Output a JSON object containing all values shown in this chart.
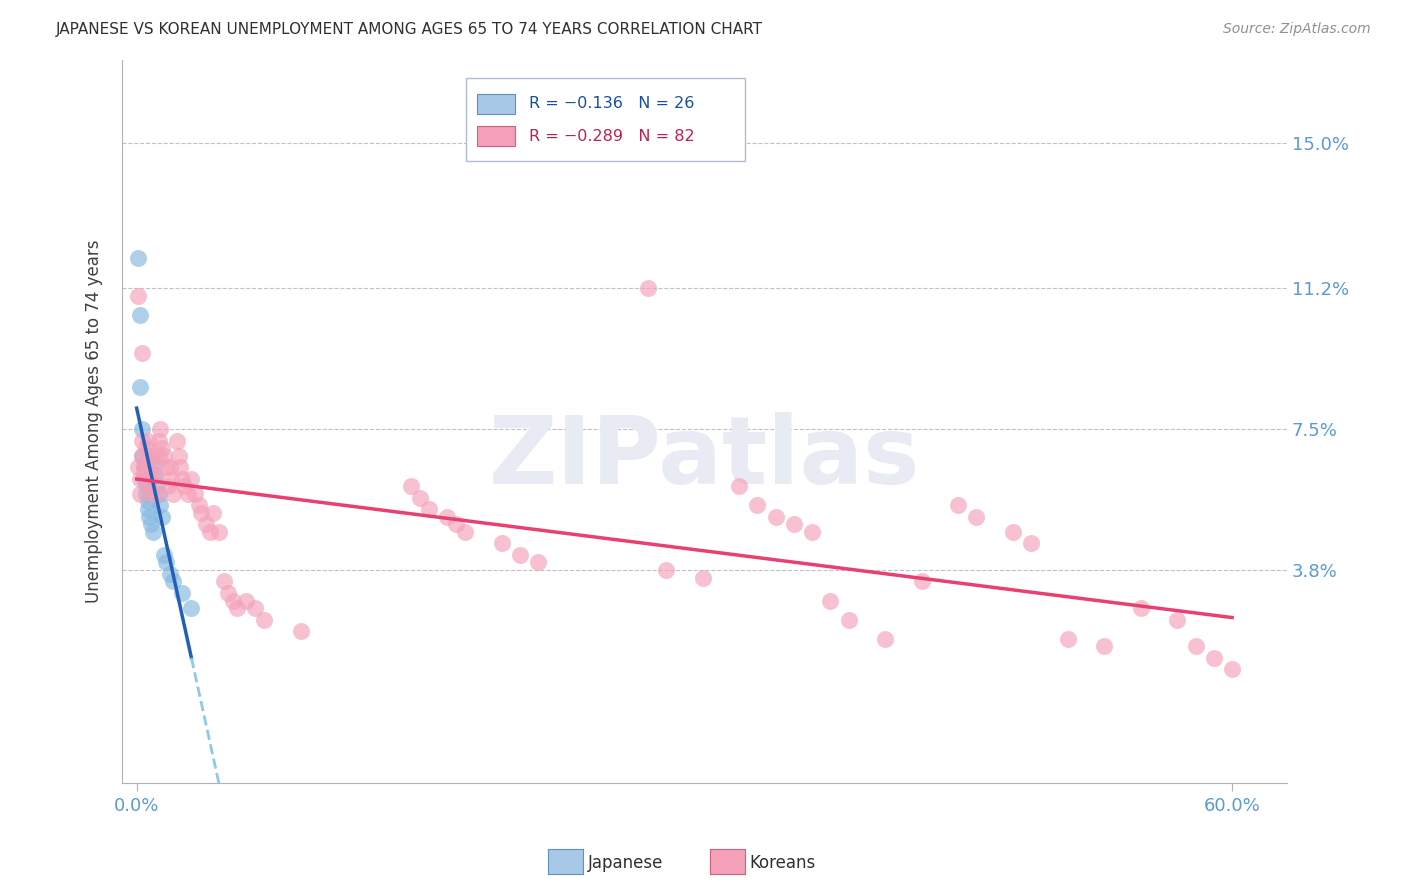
{
  "title": "JAPANESE VS KOREAN UNEMPLOYMENT AMONG AGES 65 TO 74 YEARS CORRELATION CHART",
  "source": "Source: ZipAtlas.com",
  "ylabel_label": "Unemployment Among Ages 65 to 74 years",
  "ytick_values": [
    0.038,
    0.075,
    0.112,
    0.15
  ],
  "ytick_labels": [
    "3.8%",
    "7.5%",
    "11.2%",
    "15.0%"
  ],
  "xtick_values": [
    0.0,
    0.6
  ],
  "xtick_labels": [
    "0.0%",
    "60.0%"
  ],
  "xlim": [
    -0.008,
    0.63
  ],
  "ylim": [
    -0.018,
    0.172
  ],
  "japanese_color": "#85b8e0",
  "korean_color": "#f4a0b8",
  "japanese_line_color": "#2060b8",
  "korean_line_color": "#e84070",
  "dashed_line_color": "#90c8e8",
  "watermark": "ZIPatlas",
  "japanese_points": [
    [
      0.001,
      0.12
    ],
    [
      0.002,
      0.105
    ],
    [
      0.002,
      0.086
    ],
    [
      0.003,
      0.075
    ],
    [
      0.003,
      0.068
    ],
    [
      0.004,
      0.065
    ],
    [
      0.004,
      0.062
    ],
    [
      0.005,
      0.06
    ],
    [
      0.005,
      0.058
    ],
    [
      0.006,
      0.056
    ],
    [
      0.006,
      0.054
    ],
    [
      0.007,
      0.052
    ],
    [
      0.008,
      0.05
    ],
    [
      0.009,
      0.048
    ],
    [
      0.01,
      0.066
    ],
    [
      0.01,
      0.063
    ],
    [
      0.011,
      0.06
    ],
    [
      0.012,
      0.058
    ],
    [
      0.013,
      0.055
    ],
    [
      0.014,
      0.052
    ],
    [
      0.015,
      0.042
    ],
    [
      0.016,
      0.04
    ],
    [
      0.018,
      0.037
    ],
    [
      0.02,
      0.035
    ],
    [
      0.025,
      0.032
    ],
    [
      0.03,
      0.028
    ]
  ],
  "korean_points": [
    [
      0.001,
      0.11
    ],
    [
      0.001,
      0.065
    ],
    [
      0.002,
      0.062
    ],
    [
      0.002,
      0.058
    ],
    [
      0.003,
      0.095
    ],
    [
      0.003,
      0.072
    ],
    [
      0.003,
      0.068
    ],
    [
      0.004,
      0.065
    ],
    [
      0.004,
      0.063
    ],
    [
      0.005,
      0.07
    ],
    [
      0.005,
      0.065
    ],
    [
      0.006,
      0.072
    ],
    [
      0.006,
      0.068
    ],
    [
      0.006,
      0.062
    ],
    [
      0.007,
      0.065
    ],
    [
      0.007,
      0.06
    ],
    [
      0.008,
      0.068
    ],
    [
      0.008,
      0.063
    ],
    [
      0.009,
      0.058
    ],
    [
      0.01,
      0.063
    ],
    [
      0.011,
      0.058
    ],
    [
      0.012,
      0.072
    ],
    [
      0.012,
      0.068
    ],
    [
      0.013,
      0.075
    ],
    [
      0.014,
      0.07
    ],
    [
      0.015,
      0.068
    ],
    [
      0.016,
      0.065
    ],
    [
      0.017,
      0.06
    ],
    [
      0.018,
      0.065
    ],
    [
      0.019,
      0.062
    ],
    [
      0.02,
      0.058
    ],
    [
      0.022,
      0.072
    ],
    [
      0.023,
      0.068
    ],
    [
      0.024,
      0.065
    ],
    [
      0.025,
      0.062
    ],
    [
      0.026,
      0.06
    ],
    [
      0.028,
      0.058
    ],
    [
      0.03,
      0.062
    ],
    [
      0.032,
      0.058
    ],
    [
      0.034,
      0.055
    ],
    [
      0.035,
      0.053
    ],
    [
      0.038,
      0.05
    ],
    [
      0.04,
      0.048
    ],
    [
      0.042,
      0.053
    ],
    [
      0.045,
      0.048
    ],
    [
      0.048,
      0.035
    ],
    [
      0.05,
      0.032
    ],
    [
      0.053,
      0.03
    ],
    [
      0.055,
      0.028
    ],
    [
      0.06,
      0.03
    ],
    [
      0.065,
      0.028
    ],
    [
      0.07,
      0.025
    ],
    [
      0.09,
      0.022
    ],
    [
      0.15,
      0.06
    ],
    [
      0.155,
      0.057
    ],
    [
      0.16,
      0.054
    ],
    [
      0.17,
      0.052
    ],
    [
      0.175,
      0.05
    ],
    [
      0.18,
      0.048
    ],
    [
      0.2,
      0.045
    ],
    [
      0.21,
      0.042
    ],
    [
      0.22,
      0.04
    ],
    [
      0.28,
      0.112
    ],
    [
      0.29,
      0.038
    ],
    [
      0.31,
      0.036
    ],
    [
      0.33,
      0.06
    ],
    [
      0.34,
      0.055
    ],
    [
      0.35,
      0.052
    ],
    [
      0.36,
      0.05
    ],
    [
      0.37,
      0.048
    ],
    [
      0.38,
      0.03
    ],
    [
      0.39,
      0.025
    ],
    [
      0.41,
      0.02
    ],
    [
      0.43,
      0.035
    ],
    [
      0.45,
      0.055
    ],
    [
      0.46,
      0.052
    ],
    [
      0.48,
      0.048
    ],
    [
      0.49,
      0.045
    ],
    [
      0.51,
      0.02
    ],
    [
      0.53,
      0.018
    ],
    [
      0.55,
      0.028
    ],
    [
      0.57,
      0.025
    ],
    [
      0.58,
      0.018
    ],
    [
      0.59,
      0.015
    ],
    [
      0.6,
      0.012
    ]
  ]
}
